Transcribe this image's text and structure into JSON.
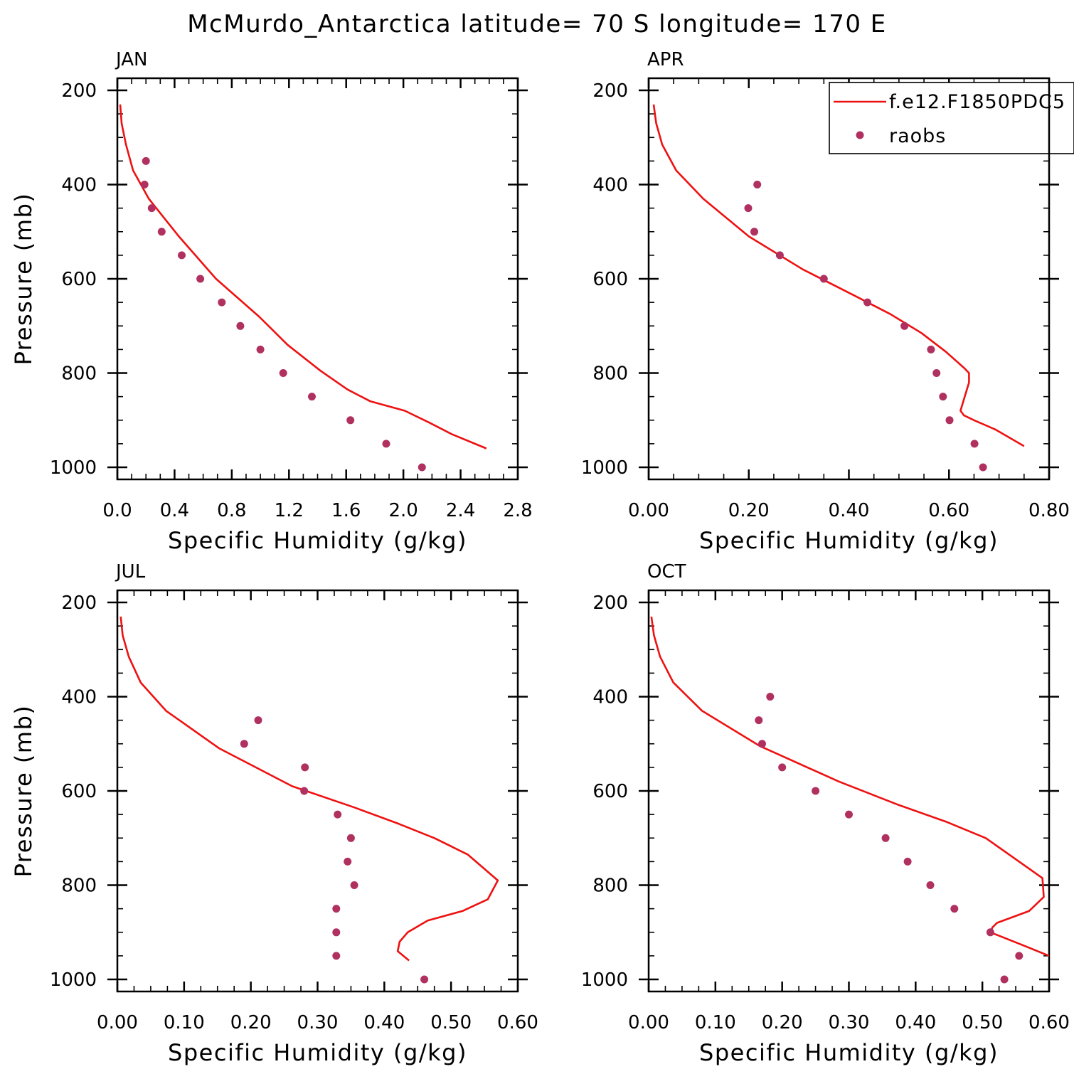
{
  "title": "McMurdo_Antarctica  latitude= 70 S longitude= 170 E",
  "colors": {
    "model": "#ee1111",
    "obs": "#b03060"
  },
  "legend": {
    "placement": "top-right of APR panel",
    "entries": [
      {
        "label": "f.e12.F1850PDC5",
        "style": "line"
      },
      {
        "label": "raobs",
        "style": "marker"
      }
    ]
  },
  "chart_data": [
    {
      "type": "line",
      "panel": "JAN",
      "xlabel": "Specific Humidity (g/kg)",
      "ylabel": "Pressure (mb)",
      "xlim": [
        0,
        2.8
      ],
      "ylim": [
        1000,
        200
      ],
      "x_ticks": [
        "0.0",
        "0.4",
        "0.8",
        "1.2",
        "1.6",
        "2.0",
        "2.4",
        "2.8"
      ],
      "y_ticks": [
        "200",
        "400",
        "600",
        "800",
        "1000"
      ],
      "series": [
        {
          "name": "f.e12.F1850PDC5",
          "kind": "line",
          "x": [
            0.02,
            0.03,
            0.06,
            0.11,
            0.22,
            0.43,
            0.69,
            0.99,
            1.19,
            1.42,
            1.61,
            1.77,
            2.01,
            2.18,
            2.34,
            2.58
          ],
          "y": [
            230,
            270,
            315,
            370,
            430,
            510,
            600,
            680,
            740,
            795,
            835,
            860,
            880,
            905,
            930,
            960
          ]
        },
        {
          "name": "raobs",
          "kind": "scatter",
          "x": [
            0.2,
            0.19,
            0.24,
            0.31,
            0.45,
            0.58,
            0.73,
            0.86,
            1.0,
            1.16,
            1.36,
            1.63,
            1.88,
            2.13
          ],
          "y": [
            350,
            400,
            450,
            500,
            550,
            600,
            650,
            700,
            750,
            800,
            850,
            900,
            950,
            1000
          ]
        }
      ]
    },
    {
      "type": "line",
      "panel": "APR",
      "xlabel": "Specific Humidity (g/kg)",
      "ylabel": "",
      "xlim": [
        0,
        0.8
      ],
      "ylim": [
        1000,
        200
      ],
      "x_ticks": [
        "0.00",
        "0.20",
        "0.40",
        "0.60",
        "0.80"
      ],
      "y_ticks": [
        "200",
        "400",
        "600",
        "800",
        "1000"
      ],
      "series": [
        {
          "name": "f.e12.F1850PDC5",
          "kind": "line",
          "x": [
            0.01,
            0.015,
            0.027,
            0.055,
            0.109,
            0.2,
            0.308,
            0.41,
            0.483,
            0.545,
            0.594,
            0.631,
            0.64,
            0.64,
            0.63,
            0.623,
            0.63,
            0.65,
            0.693,
            0.75
          ],
          "y": [
            230,
            270,
            315,
            370,
            430,
            510,
            580,
            635,
            675,
            715,
            755,
            790,
            800,
            820,
            855,
            880,
            890,
            900,
            920,
            955
          ]
        },
        {
          "name": "raobs",
          "kind": "scatter",
          "x": [
            0.217,
            0.199,
            0.211,
            0.262,
            0.35,
            0.437,
            0.511,
            0.564,
            0.575,
            0.588,
            0.601,
            0.651,
            0.668
          ],
          "y": [
            400,
            450,
            500,
            550,
            600,
            650,
            700,
            750,
            800,
            850,
            900,
            950,
            1000
          ]
        }
      ]
    },
    {
      "type": "line",
      "panel": "JUL",
      "xlabel": "Specific Humidity (g/kg)",
      "ylabel": "Pressure (mb)",
      "xlim": [
        0,
        0.6
      ],
      "ylim": [
        1000,
        200
      ],
      "x_ticks": [
        "0.00",
        "0.10",
        "0.20",
        "0.30",
        "0.40",
        "0.50",
        "0.60"
      ],
      "y_ticks": [
        "200",
        "400",
        "600",
        "800",
        "1000"
      ],
      "series": [
        {
          "name": "f.e12.F1850PDC5",
          "kind": "line",
          "x": [
            0.005,
            0.008,
            0.017,
            0.035,
            0.073,
            0.153,
            0.262,
            0.355,
            0.422,
            0.475,
            0.525,
            0.57,
            0.555,
            0.517,
            0.465,
            0.435,
            0.423,
            0.42,
            0.437
          ],
          "y": [
            230,
            270,
            315,
            370,
            430,
            510,
            590,
            635,
            670,
            700,
            735,
            790,
            830,
            855,
            875,
            900,
            920,
            940,
            960
          ]
        },
        {
          "name": "raobs",
          "kind": "scatter",
          "x": [
            0.211,
            0.19,
            0.281,
            0.28,
            0.33,
            0.35,
            0.345,
            0.355,
            0.328,
            0.328,
            0.328,
            0.46
          ],
          "y": [
            450,
            500,
            550,
            600,
            650,
            700,
            750,
            800,
            850,
            900,
            950,
            1000
          ]
        }
      ]
    },
    {
      "type": "line",
      "panel": "OCT",
      "xlabel": "Specific Humidity (g/kg)",
      "ylabel": "",
      "xlim": [
        0,
        0.6
      ],
      "ylim": [
        1000,
        200
      ],
      "x_ticks": [
        "0.00",
        "0.10",
        "0.20",
        "0.30",
        "0.40",
        "0.50",
        "0.60"
      ],
      "y_ticks": [
        "200",
        "400",
        "600",
        "800",
        "1000"
      ],
      "series": [
        {
          "name": "f.e12.F1850PDC5",
          "kind": "line",
          "x": [
            0.004,
            0.008,
            0.017,
            0.037,
            0.08,
            0.167,
            0.285,
            0.375,
            0.445,
            0.505,
            0.54,
            0.59,
            0.592,
            0.57,
            0.522,
            0.515,
            0.512,
            0.53,
            0.565,
            0.6
          ],
          "y": [
            230,
            270,
            315,
            370,
            430,
            505,
            580,
            630,
            665,
            700,
            735,
            785,
            825,
            855,
            880,
            890,
            900,
            910,
            930,
            950
          ]
        },
        {
          "name": "raobs",
          "kind": "scatter",
          "x": [
            0.182,
            0.165,
            0.17,
            0.2,
            0.25,
            0.3,
            0.355,
            0.388,
            0.422,
            0.458,
            0.512,
            0.555,
            0.533
          ],
          "y": [
            400,
            450,
            500,
            550,
            600,
            650,
            700,
            750,
            800,
            850,
            900,
            950,
            1000
          ]
        }
      ]
    }
  ]
}
